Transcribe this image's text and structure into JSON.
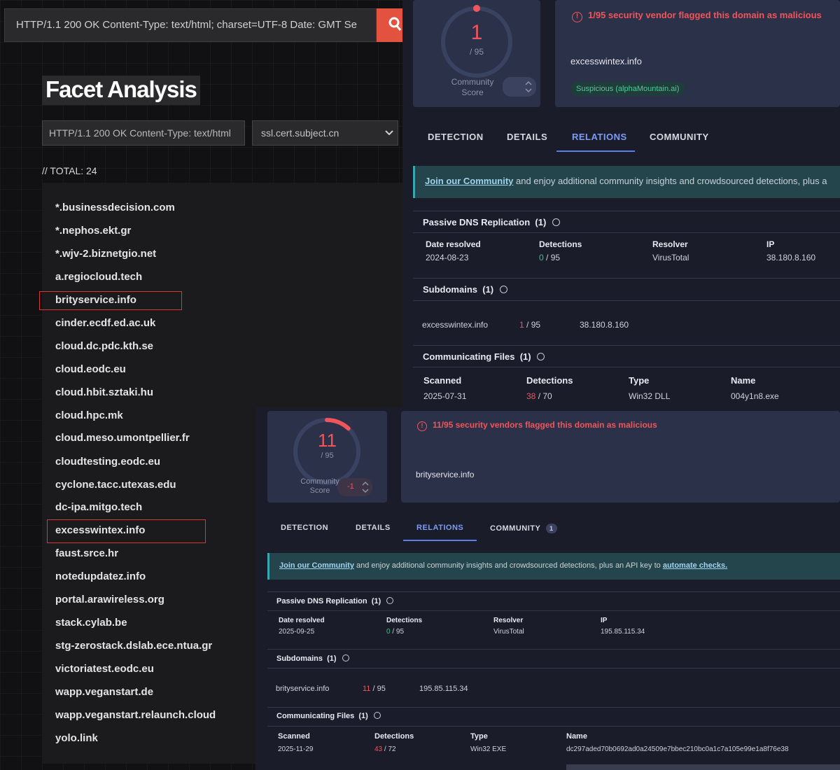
{
  "censys": {
    "search_value": "HTTP/1.1 200 OK Content-Type: text/html; charset=UTF-8 Date:  GMT Se",
    "title": "Facet Analysis",
    "facet_query": "HTTP/1.1 200 OK Content-Type: text/html",
    "facet_field": "ssl.cert.subject.cn",
    "total": "// TOTAL: 24",
    "hosts": [
      "*.businessdecision.com",
      "*.nephos.ekt.gr",
      "*.wjv-2.biznetgio.net",
      "a.regiocloud.tech",
      "brityservice.info",
      "cinder.ecdf.ed.ac.uk",
      "cloud.dc.pdc.kth.se",
      "cloud.eodc.eu",
      "cloud.hbit.sztaki.hu",
      "cloud.hpc.mk",
      "cloud.meso.umontpellier.fr",
      "cloudtesting.eodc.eu",
      "cyclone.tacc.utexas.edu",
      "dc-ipa.mitgo.tech",
      "excesswintex.info",
      "faust.srce.hr",
      "notedupdatez.info",
      "portal.arawireless.org",
      "stack.cylab.be",
      "stg-zerostack.dslab.ece.ntua.gr",
      "victoriatest.eodc.eu",
      "wapp.veganstart.de",
      "wapp.veganstart.relaunch.cloud",
      "yolo.link"
    ]
  },
  "vt1": {
    "score": "1",
    "score_total": "/ 95",
    "community_label_1": "Community",
    "community_label_2": "Score",
    "community_value": "",
    "warning": "1/95 security vendor flagged this domain as malicious",
    "domain": "excesswintex.info",
    "tag": "Suspicious (alphaMountain.ai)",
    "tabs": [
      "DETECTION",
      "DETAILS",
      "RELATIONS",
      "COMMUNITY"
    ],
    "banner_link": "Join our Community",
    "banner_text": " and enjoy additional community insights and crowdsourced detections, plus a",
    "dns": {
      "header": "Passive DNS Replication",
      "count": "(1)",
      "cols": [
        "Date resolved",
        "Detections",
        "Resolver",
        "IP"
      ],
      "row": {
        "date": "2024-08-23",
        "det_hit": "0",
        "det_total": " / 95",
        "resolver": "VirusTotal",
        "ip": "38.180.8.160"
      }
    },
    "subdomains": {
      "header": "Subdomains",
      "count": "(1)",
      "row": {
        "name": "excesswintex.info",
        "det_hit": "1",
        "det_total": " / 95",
        "ip": "38.180.8.160"
      }
    },
    "files": {
      "header": "Communicating Files",
      "count": "(1)",
      "cols": [
        "Scanned",
        "Detections",
        "Type",
        "Name"
      ],
      "row": {
        "scanned": "2025-07-31",
        "det_hit": "38",
        "det_total": " / 70",
        "type": "Win32 DLL",
        "name": "004y1n8.exe"
      }
    }
  },
  "vt2": {
    "score": "11",
    "score_total": "/ 95",
    "community_label_1": "Community",
    "community_label_2": "Score",
    "community_value": "-1",
    "warning": "11/95 security vendors flagged this domain as malicious",
    "domain": "brityservice.info",
    "tabs": [
      "DETECTION",
      "DETAILS",
      "RELATIONS",
      "COMMUNITY"
    ],
    "community_badge": "1",
    "banner_link": "Join our Community",
    "banner_text": " and enjoy additional community insights and crowdsourced detections, plus an API key to ",
    "banner_link2": "automate checks.",
    "dns": {
      "header": "Passive DNS Replication",
      "count": "(1)",
      "cols": [
        "Date resolved",
        "Detections",
        "Resolver",
        "IP"
      ],
      "row": {
        "date": "2025-09-25",
        "det_hit": "0",
        "det_total": " / 95",
        "resolver": "VirusTotal",
        "ip": "195.85.115.34"
      }
    },
    "subdomains": {
      "header": "Subdomains",
      "count": "(1)",
      "row": {
        "name": "brityservice.info",
        "det_hit": "11",
        "det_total": " / 95",
        "ip": "195.85.115.34"
      }
    },
    "files": {
      "header": "Communicating Files",
      "count": "(1)",
      "cols": [
        "Scanned",
        "Detections",
        "Type",
        "Name"
      ],
      "row": {
        "scanned": "2025-11-29",
        "det_hit": "43",
        "det_total": " / 72",
        "type": "Win32 EXE",
        "name": "dc297aded70b0692ad0a24509e7bbec210bc0a1c7a105e99e1a8f76e38"
      }
    }
  },
  "colors": {
    "accent_red": "#e2523f",
    "vt_active_tab": "#7b9df2",
    "vt_malicious": "#f0555c",
    "vt_clean": "#3ec08a"
  }
}
